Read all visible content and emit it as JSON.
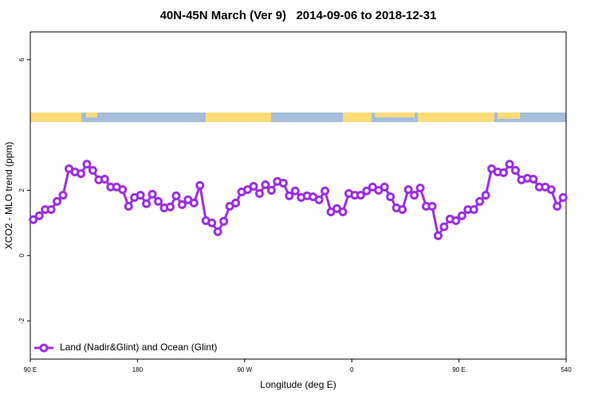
{
  "chart_data": {
    "type": "line",
    "title": "40N-45N March (Ver 9)   2014-09-06 to 2018-12-31",
    "x_label": "Longitude (deg E)",
    "y_label": "XCO2 - MLO trend (ppm)",
    "x": [
      92.5,
      97.5,
      102.5,
      107.5,
      112.5,
      117.5,
      122.5,
      127.5,
      132.5,
      137.5,
      142.5,
      147.5,
      152.5,
      157.5,
      162.5,
      167.5,
      172.5,
      177.5,
      182.5,
      187.5,
      192.5,
      197.5,
      202.5,
      207.5,
      212.5,
      217.5,
      222.5,
      227.5,
      232.5,
      237.5,
      242.5,
      247.5,
      252.5,
      257.5,
      262.5,
      267.5,
      272.5,
      277.5,
      282.5,
      287.5,
      292.5,
      297.5,
      302.5,
      307.5,
      312.5,
      317.5,
      322.5,
      327.5,
      332.5,
      337.5,
      342.5,
      347.5,
      352.5,
      357.5,
      362.5,
      367.5,
      372.5,
      377.5,
      382.5,
      387.5,
      392.5,
      397.5,
      402.5,
      407.5,
      412.5,
      417.5,
      422.5,
      427.5,
      432.5,
      437.5,
      442.5,
      447.5,
      452.5,
      457.5,
      462.5,
      467.5,
      472.5,
      477.5,
      482.5,
      487.5,
      492.5,
      497.5,
      502.5,
      507.5,
      512.5,
      517.5,
      522.5,
      527.5,
      532.5,
      537.5
    ],
    "series": [
      {
        "name": "Land (Nadir&Glint) and Ocean (Glint)",
        "color": "#9b2fe0",
        "values": [
          1.1,
          1.22,
          1.41,
          1.41,
          1.66,
          1.85,
          2.66,
          2.56,
          2.51,
          2.8,
          2.61,
          2.32,
          2.34,
          2.1,
          2.1,
          2.02,
          1.51,
          1.78,
          1.85,
          1.59,
          1.88,
          1.66,
          1.46,
          1.49,
          1.83,
          1.56,
          1.71,
          1.61,
          2.15,
          1.07,
          1.0,
          0.73,
          1.05,
          1.51,
          1.61,
          1.95,
          2.02,
          2.12,
          1.9,
          2.17,
          2.0,
          2.27,
          2.22,
          1.83,
          1.98,
          1.78,
          1.83,
          1.8,
          1.71,
          1.98,
          1.34,
          1.44,
          1.34,
          1.9,
          1.85,
          1.85,
          1.98,
          2.1,
          2.0,
          2.1,
          1.8,
          1.46,
          1.41,
          2.02,
          1.85,
          2.07,
          1.51,
          1.51,
          0.61,
          0.88,
          1.12,
          1.07,
          1.22,
          1.41,
          1.41,
          1.66,
          1.85,
          2.66,
          2.56,
          2.54,
          2.8,
          2.61,
          2.32,
          2.37,
          2.34,
          2.1,
          2.1,
          2.02,
          1.51,
          1.78
        ]
      }
    ],
    "xlim": [
      90,
      540
    ],
    "xticks": [
      {
        "value": 90,
        "label": "90 E"
      },
      180,
      {
        "value": 270,
        "label": "90 W"
      },
      {
        "value": 360,
        "label": "0"
      },
      {
        "value": 450,
        "label": "90 E"
      },
      540
    ],
    "ylim": [
      -3.17,
      6.85
    ],
    "yticks": [
      -2,
      0,
      2,
      6
    ],
    "legend": "bottom-left"
  }
}
